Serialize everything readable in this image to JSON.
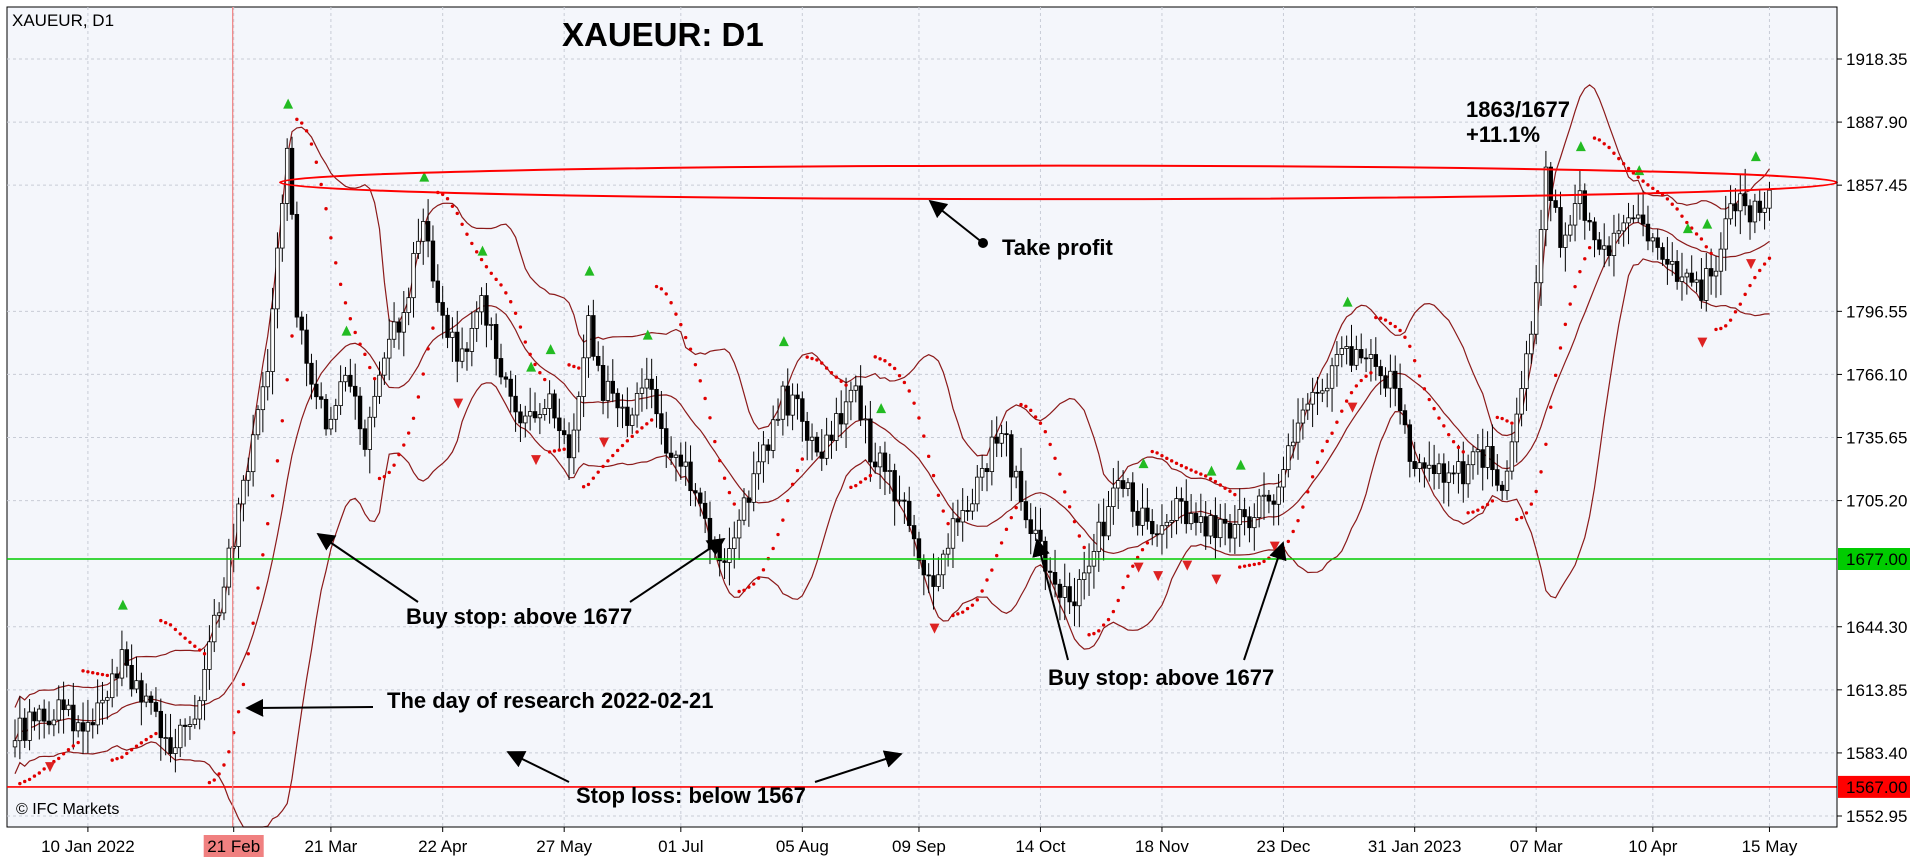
{
  "header": {
    "symbol_label": "XAUEUR, D1",
    "title": "XAUEUR: D1"
  },
  "credit": "© IFC Markets",
  "colors": {
    "background": "#f4f6fb",
    "grid": "#c8ccd6",
    "bands": "#8b1a1a",
    "sar": "#e00000",
    "support": "#00cc00",
    "stop": "#ff0000",
    "fractal_up": "#22bb22",
    "fractal_down": "#dd2222",
    "candle": "#000000",
    "marker": "#f08080"
  },
  "chart_data": {
    "type": "candlestick",
    "grid": true,
    "ylim": [
      1525,
      1935
    ],
    "yticks": [
      "1918.35",
      "1887.90",
      "1857.45",
      "1796.55",
      "1766.10",
      "1735.65",
      "1705.20",
      "1644.30",
      "1613.85",
      "1583.40",
      "1552.95"
    ],
    "xticks": [
      {
        "label": "10 Jan 2022",
        "index": 15
      },
      {
        "label": "21 Feb",
        "index": 45
      },
      {
        "label": "21 Mar",
        "index": 65
      },
      {
        "label": "22 Apr",
        "index": 88
      },
      {
        "label": "27 May",
        "index": 113
      },
      {
        "label": "01 Jul",
        "index": 137
      },
      {
        "label": "05 Aug",
        "index": 162
      },
      {
        "label": "09 Sep",
        "index": 186
      },
      {
        "label": "14 Oct",
        "index": 211
      },
      {
        "label": "18 Nov",
        "index": 236
      },
      {
        "label": "23 Dec",
        "index": 261
      },
      {
        "label": "31 Jan 2023",
        "index": 288
      },
      {
        "label": "07 Mar",
        "index": 313
      },
      {
        "label": "10 Apr",
        "index": 337
      },
      {
        "label": "15 May",
        "index": 361
      }
    ],
    "research_day": {
      "label": "21 Feb",
      "index": 45
    },
    "levels": [
      {
        "value": 1677,
        "label": "1677.00",
        "role": "buy-stop"
      },
      {
        "value": 1567,
        "label": "1567.00",
        "role": "stop-loss"
      }
    ],
    "take_profit_zone": [
      1857.45,
      1863
    ],
    "key_closes": [
      {
        "x": 0,
        "y": 1592
      },
      {
        "x": 8,
        "y": 1605
      },
      {
        "x": 15,
        "y": 1598
      },
      {
        "x": 22,
        "y": 1628
      },
      {
        "x": 28,
        "y": 1605
      },
      {
        "x": 33,
        "y": 1585
      },
      {
        "x": 38,
        "y": 1610
      },
      {
        "x": 42,
        "y": 1655
      },
      {
        "x": 45,
        "y": 1690
      },
      {
        "x": 49,
        "y": 1730
      },
      {
        "x": 52,
        "y": 1770
      },
      {
        "x": 54,
        "y": 1830
      },
      {
        "x": 56,
        "y": 1875
      },
      {
        "x": 58,
        "y": 1800
      },
      {
        "x": 61,
        "y": 1760
      },
      {
        "x": 64,
        "y": 1745
      },
      {
        "x": 68,
        "y": 1765
      },
      {
        "x": 72,
        "y": 1735
      },
      {
        "x": 76,
        "y": 1770
      },
      {
        "x": 80,
        "y": 1800
      },
      {
        "x": 84,
        "y": 1835
      },
      {
        "x": 88,
        "y": 1790
      },
      {
        "x": 92,
        "y": 1775
      },
      {
        "x": 96,
        "y": 1800
      },
      {
        "x": 100,
        "y": 1768
      },
      {
        "x": 105,
        "y": 1740
      },
      {
        "x": 110,
        "y": 1750
      },
      {
        "x": 114,
        "y": 1725
      },
      {
        "x": 118,
        "y": 1790
      },
      {
        "x": 121,
        "y": 1760
      },
      {
        "x": 126,
        "y": 1745
      },
      {
        "x": 130,
        "y": 1760
      },
      {
        "x": 134,
        "y": 1735
      },
      {
        "x": 138,
        "y": 1720
      },
      {
        "x": 142,
        "y": 1690
      },
      {
        "x": 145,
        "y": 1675
      },
      {
        "x": 150,
        "y": 1700
      },
      {
        "x": 154,
        "y": 1730
      },
      {
        "x": 158,
        "y": 1755
      },
      {
        "x": 162,
        "y": 1745
      },
      {
        "x": 166,
        "y": 1730
      },
      {
        "x": 170,
        "y": 1745
      },
      {
        "x": 173,
        "y": 1760
      },
      {
        "x": 176,
        "y": 1730
      },
      {
        "x": 180,
        "y": 1715
      },
      {
        "x": 184,
        "y": 1700
      },
      {
        "x": 188,
        "y": 1665
      },
      {
        "x": 191,
        "y": 1680
      },
      {
        "x": 195,
        "y": 1700
      },
      {
        "x": 199,
        "y": 1720
      },
      {
        "x": 203,
        "y": 1740
      },
      {
        "x": 206,
        "y": 1715
      },
      {
        "x": 209,
        "y": 1690
      },
      {
        "x": 213,
        "y": 1668
      },
      {
        "x": 217,
        "y": 1655
      },
      {
        "x": 221,
        "y": 1675
      },
      {
        "x": 224,
        "y": 1695
      },
      {
        "x": 227,
        "y": 1715
      },
      {
        "x": 231,
        "y": 1700
      },
      {
        "x": 235,
        "y": 1690
      },
      {
        "x": 239,
        "y": 1705
      },
      {
        "x": 243,
        "y": 1695
      },
      {
        "x": 247,
        "y": 1690
      },
      {
        "x": 251,
        "y": 1695
      },
      {
        "x": 255,
        "y": 1700
      },
      {
        "x": 259,
        "y": 1710
      },
      {
        "x": 263,
        "y": 1730
      },
      {
        "x": 267,
        "y": 1755
      },
      {
        "x": 271,
        "y": 1770
      },
      {
        "x": 275,
        "y": 1775
      },
      {
        "x": 279,
        "y": 1770
      },
      {
        "x": 283,
        "y": 1765
      },
      {
        "x": 287,
        "y": 1730
      },
      {
        "x": 291,
        "y": 1720
      },
      {
        "x": 295,
        "y": 1715
      },
      {
        "x": 299,
        "y": 1720
      },
      {
        "x": 303,
        "y": 1728
      },
      {
        "x": 306,
        "y": 1710
      },
      {
        "x": 309,
        "y": 1745
      },
      {
        "x": 312,
        "y": 1790
      },
      {
        "x": 315,
        "y": 1860
      },
      {
        "x": 318,
        "y": 1830
      },
      {
        "x": 322,
        "y": 1850
      },
      {
        "x": 326,
        "y": 1820
      },
      {
        "x": 330,
        "y": 1838
      },
      {
        "x": 334,
        "y": 1842
      },
      {
        "x": 338,
        "y": 1830
      },
      {
        "x": 342,
        "y": 1815
      },
      {
        "x": 346,
        "y": 1805
      },
      {
        "x": 350,
        "y": 1820
      },
      {
        "x": 354,
        "y": 1850
      },
      {
        "x": 358,
        "y": 1845
      },
      {
        "x": 361,
        "y": 1855
      }
    ]
  },
  "annotations": {
    "roi": "1863/1677",
    "roi_pct": "+11.1%",
    "take_profit": "Take profit",
    "buy_stop_1": "Buy stop: above 1677",
    "buy_stop_2": "Buy stop: above 1677",
    "research_day": "The day of research 2022-02-21",
    "stop_loss": "Stop loss: below 1567"
  }
}
